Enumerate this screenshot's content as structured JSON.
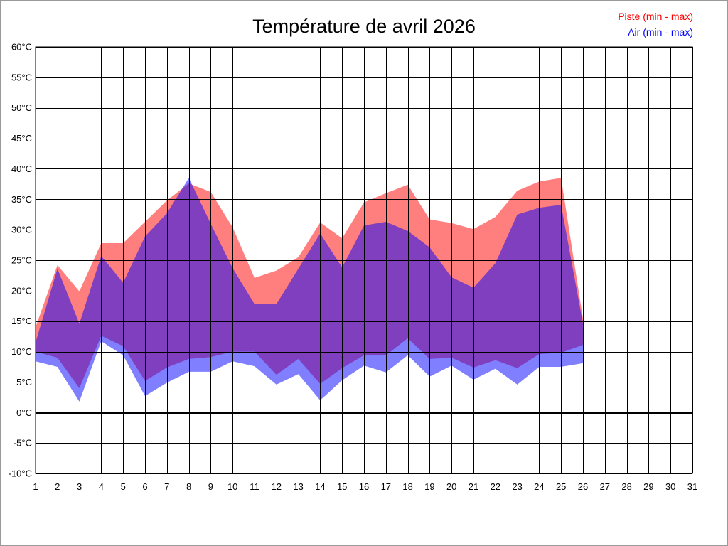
{
  "chart_data": {
    "type": "area",
    "title": "Température de avril 2026",
    "xlim": [
      1,
      31
    ],
    "ylim": [
      -10,
      60
    ],
    "grid": true,
    "legend_position": "top-right",
    "x_ticks": [
      1,
      2,
      3,
      4,
      5,
      6,
      7,
      8,
      9,
      10,
      11,
      12,
      13,
      14,
      15,
      16,
      17,
      18,
      19,
      20,
      21,
      22,
      23,
      24,
      25,
      26,
      27,
      28,
      29,
      30,
      31
    ],
    "y_ticks": [
      {
        "value": 60,
        "label": "60°C"
      },
      {
        "value": 55,
        "label": "55°C"
      },
      {
        "value": 50,
        "label": "50°C"
      },
      {
        "value": 45,
        "label": "45°C"
      },
      {
        "value": 40,
        "label": "40°C"
      },
      {
        "value": 35,
        "label": "35°C"
      },
      {
        "value": 30,
        "label": "30°C"
      },
      {
        "value": 25,
        "label": "25°C"
      },
      {
        "value": 20,
        "label": "20°C"
      },
      {
        "value": 15,
        "label": "15°C"
      },
      {
        "value": 10,
        "label": "10°C"
      },
      {
        "value": 5,
        "label": "5°C"
      },
      {
        "value": 0,
        "label": "0°C"
      },
      {
        "value": -5,
        "label": "-5°C"
      },
      {
        "value": -10,
        "label": "-10°C"
      }
    ],
    "x": [
      1,
      2,
      3,
      4,
      5,
      6,
      7,
      8,
      9,
      10,
      11,
      12,
      13,
      14,
      15,
      16,
      17,
      18,
      19,
      20,
      21,
      22,
      23,
      24,
      25,
      26
    ],
    "series": [
      {
        "name": "Piste (min - max)",
        "color": "#ff0000",
        "min": [
          10.0,
          9.0,
          4.0,
          12.6,
          10.9,
          5.2,
          7.4,
          8.8,
          9.1,
          10.0,
          10.0,
          6.2,
          8.8,
          4.7,
          7.3,
          9.4,
          9.4,
          12.2,
          8.8,
          9.0,
          7.4,
          8.6,
          7.3,
          9.6,
          9.8,
          11.1
        ],
        "max": [
          14.0,
          24.2,
          19.9,
          27.8,
          27.8,
          31.3,
          34.8,
          37.6,
          36.2,
          30.4,
          22.1,
          23.3,
          25.5,
          31.2,
          28.6,
          34.5,
          36.0,
          37.4,
          31.7,
          31.1,
          30.1,
          32.1,
          36.4,
          37.9,
          38.5,
          15.4
        ]
      },
      {
        "name": "Air (min - max)",
        "color": "#0000ff",
        "min": [
          8.4,
          7.5,
          1.8,
          11.7,
          9.4,
          2.7,
          4.9,
          6.7,
          6.7,
          8.4,
          7.6,
          4.6,
          6.3,
          2.0,
          5.3,
          7.7,
          6.6,
          9.4,
          5.9,
          7.7,
          5.4,
          7.2,
          4.6,
          7.5,
          7.5,
          8.1
        ],
        "max": [
          11.5,
          23.6,
          14.6,
          25.7,
          21.3,
          28.9,
          32.7,
          38.5,
          31.0,
          23.7,
          17.8,
          17.8,
          23.6,
          29.4,
          23.8,
          30.7,
          31.3,
          29.8,
          27.1,
          22.2,
          20.5,
          24.5,
          32.5,
          33.6,
          34.1,
          14.6
        ]
      }
    ]
  }
}
